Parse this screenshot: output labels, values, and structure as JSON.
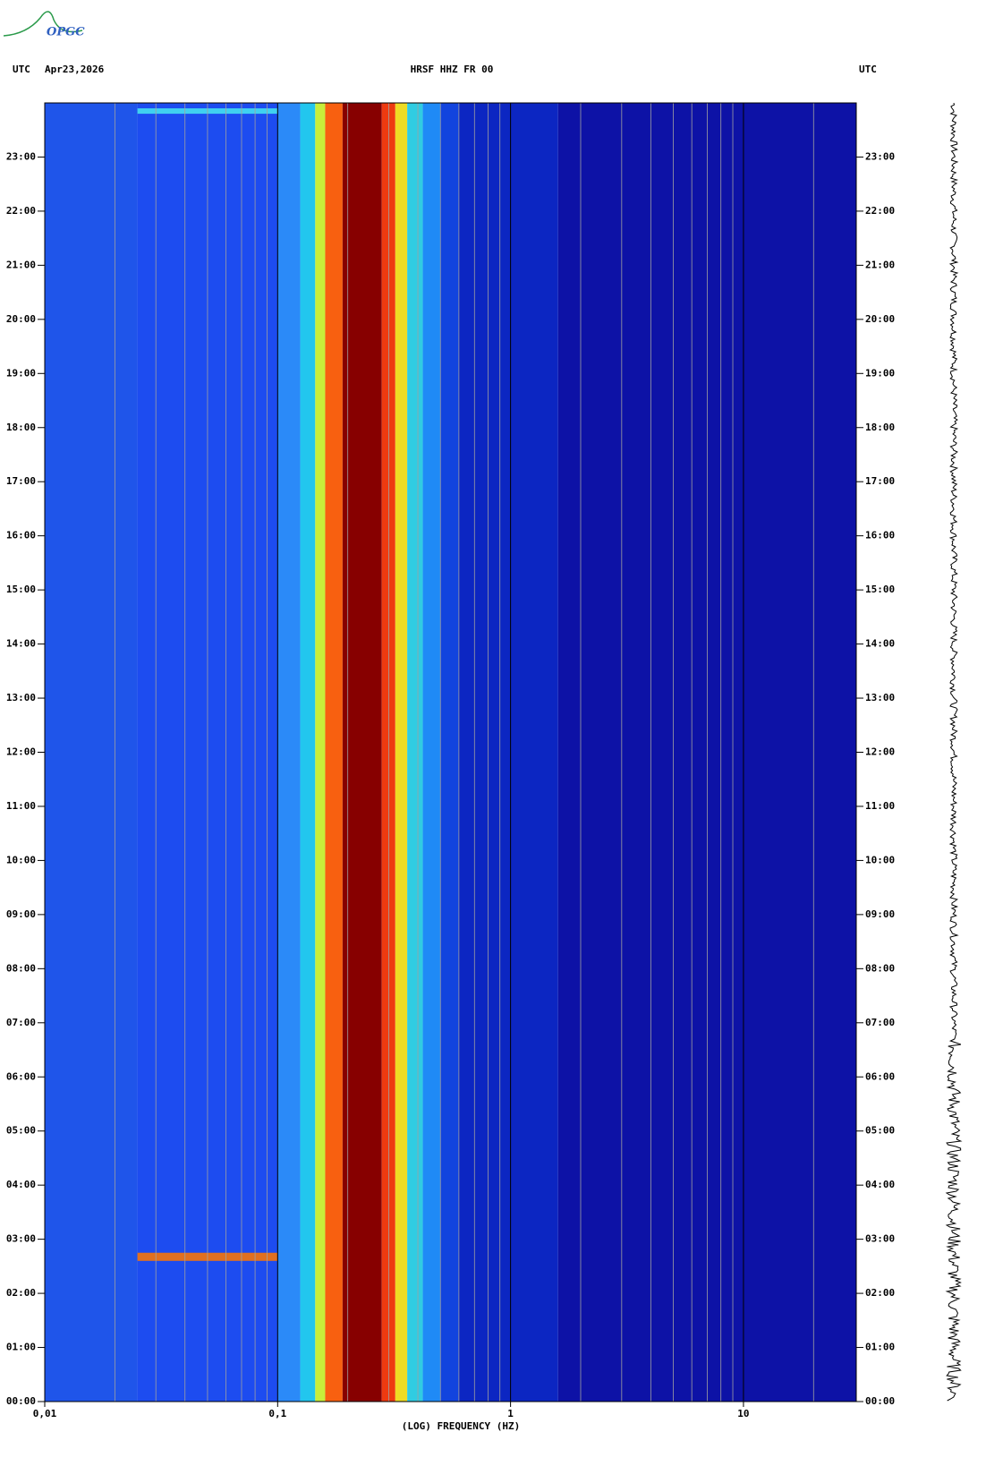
{
  "logo": "OPGC",
  "chart_data": {
    "type": "spectrogram",
    "title": "HRSF HHZ FR 00",
    "date": "Apr23,2026",
    "left_zone": "UTC",
    "right_zone": "UTC",
    "x_label": "(LOG) FREQUENCY (HZ)",
    "log_x": true,
    "xlim": [
      0.01,
      30.5
    ],
    "xticks": [
      {
        "value": 0.01,
        "label": "0,01"
      },
      {
        "value": 0.1,
        "label": "0,1"
      },
      1,
      10
    ],
    "xminorticks": [
      0.02,
      0.03,
      0.04,
      0.05,
      0.06,
      0.07,
      0.08,
      0.09,
      0.2,
      0.3,
      0.4,
      0.5,
      0.6,
      0.7,
      0.8,
      0.9,
      2,
      3,
      4,
      5,
      6,
      7,
      8,
      9,
      20
    ],
    "ylim": [
      0,
      24
    ],
    "yticks": [
      {
        "value": 0,
        "label": "00:00"
      },
      {
        "value": 1,
        "label": "01:00"
      },
      {
        "value": 2,
        "label": "02:00"
      },
      {
        "value": 3,
        "label": "03:00"
      },
      {
        "value": 4,
        "label": "04:00"
      },
      {
        "value": 5,
        "label": "05:00"
      },
      {
        "value": 6,
        "label": "06:00"
      },
      {
        "value": 7,
        "label": "07:00"
      },
      {
        "value": 8,
        "label": "08:00"
      },
      {
        "value": 9,
        "label": "09:00"
      },
      {
        "value": 10,
        "label": "10:00"
      },
      {
        "value": 11,
        "label": "11:00"
      },
      {
        "value": 12,
        "label": "12:00"
      },
      {
        "value": 13,
        "label": "13:00"
      },
      {
        "value": 14,
        "label": "14:00"
      },
      {
        "value": 15,
        "label": "15:00"
      },
      {
        "value": 16,
        "label": "16:00"
      },
      {
        "value": 17,
        "label": "17:00"
      },
      {
        "value": 18,
        "label": "18:00"
      },
      {
        "value": 19,
        "label": "19:00"
      },
      {
        "value": 20,
        "label": "20:00"
      },
      {
        "value": 21,
        "label": "21:00"
      },
      {
        "value": 22,
        "label": "22:00"
      },
      {
        "value": 23,
        "label": "23:00"
      }
    ],
    "bands": [
      {
        "from": 0.01,
        "to": 0.025,
        "color": "#1f55ea"
      },
      {
        "from": 0.025,
        "to": 0.1,
        "color": "#1d4cf0"
      },
      {
        "from": 0.1,
        "to": 0.125,
        "color": "#2b8af8"
      },
      {
        "from": 0.125,
        "to": 0.145,
        "color": "#22c6ee"
      },
      {
        "from": 0.145,
        "to": 0.16,
        "color": "#c8ee3a"
      },
      {
        "from": 0.16,
        "to": 0.19,
        "color": "#f86010"
      },
      {
        "from": 0.19,
        "to": 0.28,
        "color": "#870000"
      },
      {
        "from": 0.28,
        "to": 0.32,
        "color": "#ee3a10"
      },
      {
        "from": 0.32,
        "to": 0.36,
        "color": "#eedc24"
      },
      {
        "from": 0.36,
        "to": 0.42,
        "color": "#30cce2"
      },
      {
        "from": 0.42,
        "to": 0.5,
        "color": "#1f8af6"
      },
      {
        "from": 0.5,
        "to": 0.6,
        "color": "#1244de"
      },
      {
        "from": 0.6,
        "to": 1.6,
        "color": "#0c26c2"
      },
      {
        "from": 1.6,
        "to": 30.5,
        "color": "#0d12a6"
      }
    ],
    "events": [
      {
        "time_from": 2.6,
        "time_to": 2.75,
        "freq_from": 0.025,
        "freq_to": 0.1,
        "color": "#e07020"
      },
      {
        "time_from": 23.8,
        "time_to": 23.9,
        "freq_from": 0.025,
        "freq_to": 0.1,
        "color": "#40d0f0"
      }
    ]
  }
}
